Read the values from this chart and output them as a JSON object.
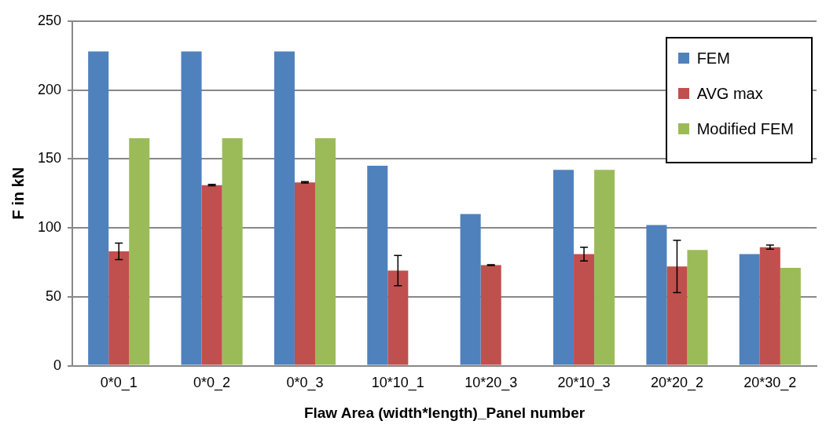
{
  "chart_data": {
    "type": "bar",
    "xlabel": "Flaw Area (width*length)_Panel number",
    "ylabel": "F in kN",
    "categories": [
      "0*0_1",
      "0*0_2",
      "0*0_3",
      "10*10_1",
      "10*20_3",
      "20*10_3",
      "20*20_2",
      "20*30_2"
    ],
    "series": [
      {
        "name": "FEM",
        "color": "#4f81bd",
        "values": [
          228,
          228,
          228,
          145,
          110,
          142,
          102,
          81
        ]
      },
      {
        "name": "AVG max",
        "color": "#c0504d",
        "values": [
          83,
          131,
          133,
          69,
          73,
          81,
          72,
          86
        ],
        "errors": [
          6,
          0.5,
          0.5,
          11,
          0.3,
          5,
          19,
          1.5
        ]
      },
      {
        "name": "Modified FEM",
        "color": "#9bbb59",
        "values": [
          165,
          165,
          165,
          null,
          null,
          142,
          84,
          71
        ]
      }
    ],
    "ylim": [
      0,
      250
    ],
    "yticks": [
      0,
      50,
      100,
      150,
      200,
      250
    ],
    "grid": "y",
    "legend": "top right"
  }
}
